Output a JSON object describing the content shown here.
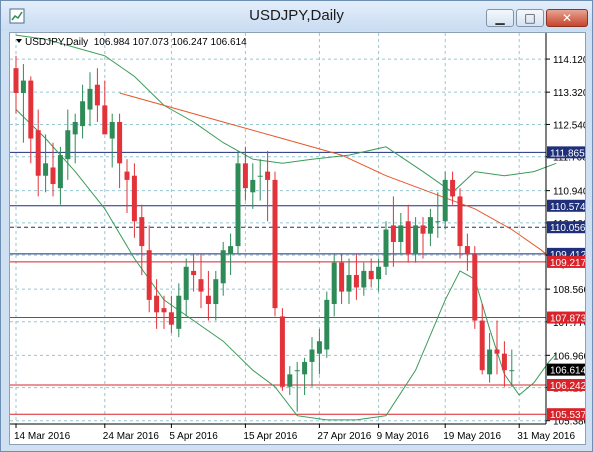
{
  "window": {
    "title": "USDJPY,Daily",
    "minimize_label": "▁",
    "maximize_label": "□",
    "close_label": "✕"
  },
  "chart_info": {
    "symbol_line": "USDJPY,Daily  106.984 107.073 106.247 106.614"
  },
  "chart_data": {
    "type": "candlestick",
    "symbol": "USDJPY",
    "timeframe": "Daily",
    "ohlc": {
      "open": 106.984,
      "high": 107.073,
      "low": 106.247,
      "close": 106.614
    },
    "y_ticks": [
      "114.120",
      "113.320",
      "112.540",
      "111.760",
      "110.940",
      "110.160",
      "109.380",
      "108.560",
      "107.770",
      "106.960",
      "106.180",
      "105.380"
    ],
    "x_ticks": [
      "14 Mar 2016",
      "24 Mar 2016",
      "5 Apr 2016",
      "15 Apr 2016",
      "27 Apr 2016",
      "9 May 2016",
      "19 May 2016",
      "31 May 2016"
    ],
    "ylim": [
      105.3,
      114.75
    ],
    "horizontal_levels": [
      {
        "value": 111.865,
        "label": "111.865",
        "color": "#1f2f7a",
        "style": "solid"
      },
      {
        "value": 110.574,
        "label": "110.574",
        "color": "#1f2f7a",
        "style": "solid"
      },
      {
        "value": 110.056,
        "label": "110.056",
        "color": "#1f2f7a",
        "style": "dashed"
      },
      {
        "value": 109.412,
        "label": "109.412",
        "color": "#1f2f7a",
        "style": "solid"
      },
      {
        "value": 109.217,
        "label": "109.217",
        "color": "#d8232a",
        "style": "solid"
      },
      {
        "value": 107.873,
        "label": "107.873",
        "color": "#d8232a",
        "style": "solid"
      },
      {
        "value": 106.242,
        "label": "106.242",
        "color": "#d8232a",
        "style": "solid"
      },
      {
        "value": 105.537,
        "label": "105.537",
        "color": "#d8232a",
        "style": "solid"
      }
    ],
    "current_price": {
      "value": 106.614,
      "label": "106.614"
    },
    "candles": [
      [
        113.9,
        114.2,
        112.8,
        113.3
      ],
      [
        113.3,
        114.0,
        112.1,
        113.6
      ],
      [
        113.6,
        113.7,
        111.6,
        112.2
      ],
      [
        112.4,
        112.9,
        110.8,
        111.3
      ],
      [
        111.3,
        112.3,
        110.9,
        111.6
      ],
      [
        111.5,
        112.1,
        110.8,
        111.1
      ],
      [
        111.0,
        112.0,
        110.6,
        111.8
      ],
      [
        111.7,
        112.9,
        111.2,
        112.4
      ],
      [
        112.3,
        112.8,
        111.6,
        112.6
      ],
      [
        112.5,
        113.5,
        112.2,
        113.1
      ],
      [
        112.9,
        113.8,
        112.5,
        113.4
      ],
      [
        113.5,
        113.9,
        112.6,
        113.0
      ],
      [
        113.0,
        113.6,
        112.3,
        112.3
      ],
      [
        112.2,
        112.8,
        111.5,
        112.6
      ],
      [
        112.6,
        112.8,
        111.0,
        111.6
      ],
      [
        111.4,
        111.7,
        110.4,
        111.2
      ],
      [
        111.3,
        111.6,
        109.8,
        110.2
      ],
      [
        110.3,
        110.6,
        108.9,
        109.6
      ],
      [
        109.5,
        110.1,
        108.0,
        108.3
      ],
      [
        108.4,
        108.8,
        107.6,
        108.0
      ],
      [
        108.1,
        108.4,
        107.6,
        108.0
      ],
      [
        108.0,
        108.4,
        107.5,
        107.7
      ],
      [
        107.6,
        108.7,
        107.4,
        108.4
      ],
      [
        108.3,
        109.3,
        107.9,
        109.1
      ],
      [
        109.0,
        109.4,
        108.5,
        108.9
      ],
      [
        108.8,
        109.4,
        108.1,
        108.5
      ],
      [
        108.4,
        109.0,
        107.8,
        108.2
      ],
      [
        108.2,
        109.0,
        107.8,
        108.8
      ],
      [
        108.7,
        109.7,
        108.4,
        109.5
      ],
      [
        109.4,
        109.9,
        108.9,
        109.6
      ],
      [
        109.6,
        111.9,
        109.4,
        111.6
      ],
      [
        111.6,
        112.0,
        110.7,
        111.0
      ],
      [
        110.9,
        111.6,
        110.5,
        111.2
      ],
      [
        111.3,
        111.7,
        110.7,
        111.3
      ],
      [
        111.4,
        111.9,
        110.2,
        111.2
      ],
      [
        111.2,
        111.4,
        107.9,
        108.1
      ],
      [
        107.9,
        108.1,
        106.1,
        106.2
      ],
      [
        106.2,
        106.7,
        106.0,
        106.5
      ],
      [
        106.6,
        106.8,
        105.6,
        106.6
      ],
      [
        106.5,
        106.9,
        106.0,
        106.8
      ],
      [
        106.8,
        107.4,
        106.2,
        107.1
      ],
      [
        107.0,
        107.6,
        106.5,
        107.3
      ],
      [
        107.1,
        108.5,
        106.9,
        108.3
      ],
      [
        108.2,
        109.4,
        107.9,
        109.2
      ],
      [
        109.2,
        109.4,
        108.2,
        108.5
      ],
      [
        108.5,
        109.3,
        108.2,
        108.9
      ],
      [
        108.9,
        109.4,
        108.3,
        108.6
      ],
      [
        108.6,
        109.2,
        108.4,
        109.0
      ],
      [
        109.0,
        109.3,
        108.6,
        108.8
      ],
      [
        108.8,
        109.3,
        108.5,
        109.1
      ],
      [
        109.1,
        110.2,
        108.9,
        110.0
      ],
      [
        110.1,
        110.8,
        109.1,
        109.7
      ],
      [
        109.7,
        110.4,
        109.4,
        110.1
      ],
      [
        110.2,
        110.6,
        109.2,
        109.4
      ],
      [
        109.4,
        110.3,
        109.2,
        110.1
      ],
      [
        110.1,
        110.3,
        109.3,
        109.9
      ],
      [
        109.9,
        110.5,
        109.6,
        110.3
      ],
      [
        110.2,
        110.9,
        109.8,
        110.2
      ],
      [
        110.2,
        111.4,
        110.0,
        111.2
      ],
      [
        111.2,
        111.4,
        110.6,
        110.8
      ],
      [
        110.8,
        111.0,
        109.3,
        109.6
      ],
      [
        109.6,
        109.9,
        109.0,
        109.4
      ],
      [
        109.4,
        109.6,
        107.6,
        107.8
      ],
      [
        107.8,
        108.2,
        106.5,
        106.6
      ],
      [
        106.5,
        107.5,
        106.3,
        107.1
      ],
      [
        107.1,
        107.8,
        106.5,
        107.0
      ],
      [
        107.0,
        107.3,
        106.2,
        106.6
      ],
      [
        106.6,
        107.1,
        106.2,
        106.6
      ]
    ],
    "moving_average_red": [
      [
        14,
        113.3
      ],
      [
        20,
        113.0
      ],
      [
        28,
        112.6
      ],
      [
        36,
        112.2
      ],
      [
        44,
        111.8
      ],
      [
        50,
        111.3
      ],
      [
        56,
        110.9
      ],
      [
        62,
        110.5
      ],
      [
        67,
        110.0
      ],
      [
        71,
        109.5
      ],
      [
        74,
        109.05
      ]
    ],
    "bollinger_upper": [
      [
        0,
        114.7
      ],
      [
        4,
        114.6
      ],
      [
        8,
        114.4
      ],
      [
        12,
        114.2
      ],
      [
        16,
        113.7
      ],
      [
        20,
        113.0
      ],
      [
        24,
        112.6
      ],
      [
        28,
        112.1
      ],
      [
        32,
        111.7
      ],
      [
        36,
        111.6
      ],
      [
        40,
        111.7
      ],
      [
        45,
        111.8
      ],
      [
        50,
        112.0
      ],
      [
        55,
        111.4
      ],
      [
        59,
        110.9
      ],
      [
        62,
        111.4
      ],
      [
        66,
        111.3
      ],
      [
        70,
        111.4
      ],
      [
        73,
        111.6
      ]
    ],
    "bollinger_lower": [
      [
        0,
        112.9
      ],
      [
        4,
        112.2
      ],
      [
        8,
        111.4
      ],
      [
        12,
        110.5
      ],
      [
        16,
        109.3
      ],
      [
        20,
        108.3
      ],
      [
        24,
        107.8
      ],
      [
        28,
        107.3
      ],
      [
        32,
        106.6
      ],
      [
        35,
        106.2
      ],
      [
        38,
        105.5
      ],
      [
        42,
        105.4
      ],
      [
        46,
        105.4
      ],
      [
        50,
        105.5
      ],
      [
        54,
        106.6
      ],
      [
        58,
        108.3
      ],
      [
        60,
        109.0
      ],
      [
        62,
        108.8
      ],
      [
        64,
        107.6
      ],
      [
        66,
        106.5
      ],
      [
        68,
        106.0
      ],
      [
        70,
        106.3
      ],
      [
        72,
        106.8
      ],
      [
        73,
        107.0
      ]
    ],
    "colors": {
      "bull": "#2e8b57",
      "bear": "#e2323a",
      "ma": "#e8582c",
      "bands": "#3b9b58",
      "grid": "#96c8d2"
    }
  }
}
